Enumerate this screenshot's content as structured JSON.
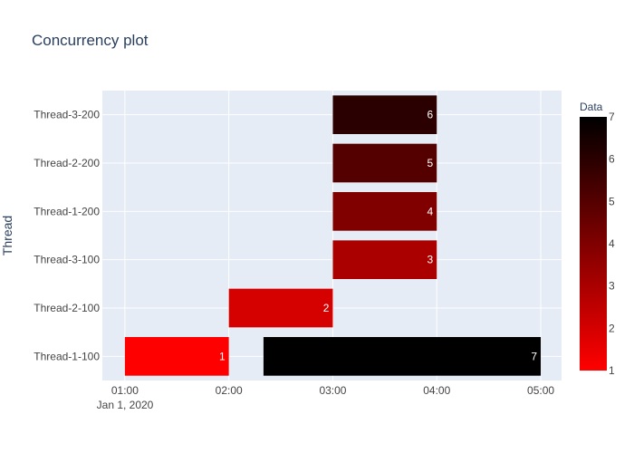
{
  "chart_data": {
    "type": "gantt",
    "title": "Concurrency plot",
    "ylabel": "Thread",
    "xlabel": "",
    "x_axis": {
      "type": "date",
      "range": [
        "2020-01-01 00:47",
        "2020-01-01 05:12"
      ],
      "ticks": [
        "2020-01-01 01:00",
        "2020-01-01 02:00",
        "2020-01-01 03:00",
        "2020-01-01 04:00",
        "2020-01-01 05:00"
      ],
      "tick_labels": [
        "01:00",
        "02:00",
        "03:00",
        "04:00",
        "05:00"
      ],
      "date_label": "Jan 1, 2020"
    },
    "categories": [
      "Thread-1-100",
      "Thread-2-100",
      "Thread-3-100",
      "Thread-1-200",
      "Thread-2-200",
      "Thread-3-200"
    ],
    "tasks": [
      {
        "thread": "Thread-1-100",
        "start": "2020-01-01 01:00",
        "end": "2020-01-01 02:00",
        "value": 1,
        "label": "1"
      },
      {
        "thread": "Thread-2-100",
        "start": "2020-01-01 02:00",
        "end": "2020-01-01 03:00",
        "value": 2,
        "label": "2"
      },
      {
        "thread": "Thread-3-100",
        "start": "2020-01-01 03:00",
        "end": "2020-01-01 04:00",
        "value": 3,
        "label": "3"
      },
      {
        "thread": "Thread-1-200",
        "start": "2020-01-01 03:00",
        "end": "2020-01-01 04:00",
        "value": 4,
        "label": "4"
      },
      {
        "thread": "Thread-2-200",
        "start": "2020-01-01 03:00",
        "end": "2020-01-01 04:00",
        "value": 5,
        "label": "5"
      },
      {
        "thread": "Thread-3-200",
        "start": "2020-01-01 03:00",
        "end": "2020-01-01 04:00",
        "value": 6,
        "label": "6"
      },
      {
        "thread": "Thread-1-100",
        "start": "2020-01-01 02:20",
        "end": "2020-01-01 05:00",
        "value": 7,
        "label": "7"
      }
    ],
    "colorbar": {
      "title": "Data",
      "range": [
        1,
        7
      ],
      "ticks": [
        "1",
        "2",
        "3",
        "4",
        "5",
        "6",
        "7"
      ],
      "colors": [
        "#ff0000",
        "#000000"
      ]
    },
    "grid": true,
    "legend": "none"
  },
  "colors": {
    "plot_background": "#e5ecf6",
    "grid": "#ffffff",
    "text": "#2a3f5f",
    "tick_text": "#444444",
    "bar_label_text": "#ffffff"
  }
}
